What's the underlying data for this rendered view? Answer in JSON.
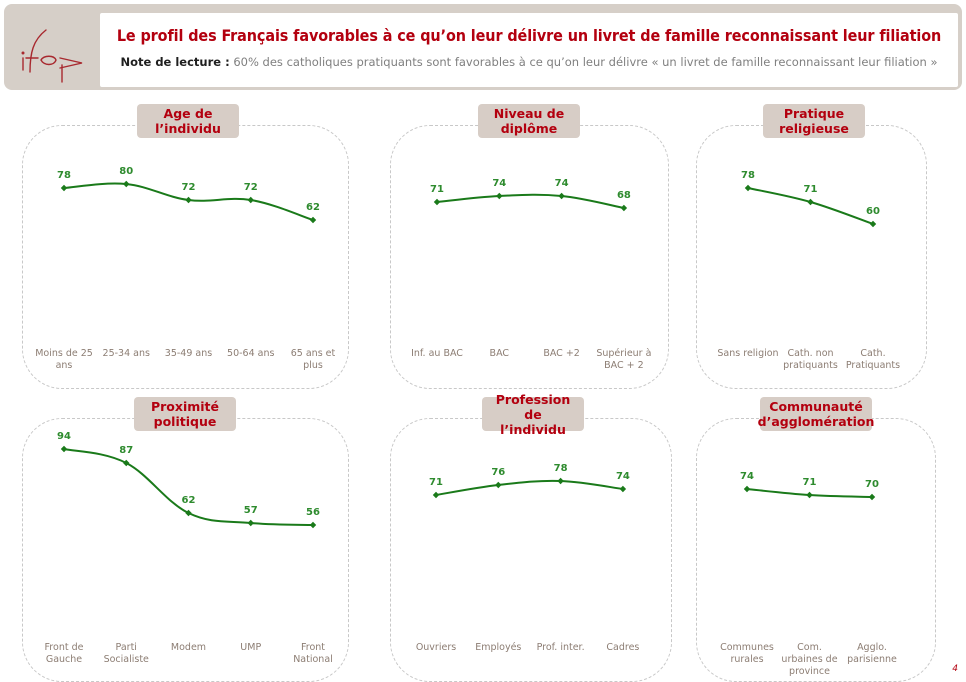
{
  "header": {
    "logo_text": "ifop",
    "title": "Le profil des Français favorables à ce qu’on leur délivre un livret de famille reconnaissant leur filiation",
    "note_label": "Note de lecture :",
    "note_text": "60% des catholiques pratiquants sont favorables à ce qu’on leur délivre « un livret de famille reconnaissant leur filiation »"
  },
  "colors": {
    "title_red": "#b3000f",
    "line_green": "#1a7a1a",
    "label_green": "#2e8b2e",
    "panel_title_bg": "#d7cdc6",
    "category_text": "#8c7d73"
  },
  "page_number": "4",
  "chart_data": [
    {
      "type": "line",
      "title": "Age de l’individu",
      "title_lines": [
        "Age de",
        "l’individu"
      ],
      "categories": [
        "Moins de 25 ans",
        "25-34 ans",
        "35-49 ans",
        "50-64 ans",
        "65 ans et plus"
      ],
      "category_lines": [
        [
          "Moins de 25",
          "ans"
        ],
        [
          "25-34 ans"
        ],
        [
          "35-49 ans"
        ],
        [
          "50-64 ans"
        ],
        [
          "65 ans et",
          "plus"
        ]
      ],
      "values": [
        78,
        80,
        72,
        72,
        62
      ],
      "unit": "%"
    },
    {
      "type": "line",
      "title": "Niveau de diplôme",
      "title_lines": [
        "Niveau de",
        "diplôme"
      ],
      "categories": [
        "Inf. au BAC",
        "BAC",
        "BAC +2",
        "Supérieur à BAC + 2"
      ],
      "category_lines": [
        [
          "Inf. au BAC"
        ],
        [
          "BAC"
        ],
        [
          "BAC +2"
        ],
        [
          "Supérieur à",
          "BAC + 2"
        ]
      ],
      "values": [
        71,
        74,
        74,
        68
      ],
      "unit": "%"
    },
    {
      "type": "line",
      "title": "Pratique religieuse",
      "title_lines": [
        "Pratique",
        "religieuse"
      ],
      "categories": [
        "Sans religion",
        "Cath. non pratiquants",
        "Cath. Pratiquants"
      ],
      "category_lines": [
        [
          "Sans religion"
        ],
        [
          "Cath. non",
          "pratiquants"
        ],
        [
          "Cath.",
          "Pratiquants"
        ]
      ],
      "values": [
        78,
        71,
        60
      ],
      "unit": "%"
    },
    {
      "type": "line",
      "title": "Proximité politique",
      "title_lines": [
        "Proximité",
        "politique"
      ],
      "categories": [
        "Front de Gauche",
        "Parti Socialiste",
        "Modem",
        "UMP",
        "Front National"
      ],
      "category_lines": [
        [
          "Front de",
          "Gauche"
        ],
        [
          "Parti",
          "Socialiste"
        ],
        [
          "Modem"
        ],
        [
          "UMP"
        ],
        [
          "Front",
          "National"
        ]
      ],
      "values": [
        94,
        87,
        62,
        57,
        56
      ],
      "unit": "%"
    },
    {
      "type": "line",
      "title": "Profession de l’individu",
      "title_lines": [
        "Profession de",
        "l’individu"
      ],
      "categories": [
        "Ouvriers",
        "Employés",
        "Prof. inter.",
        "Cadres"
      ],
      "category_lines": [
        [
          "Ouvriers"
        ],
        [
          "Employés"
        ],
        [
          "Prof. inter."
        ],
        [
          "Cadres"
        ]
      ],
      "values": [
        71,
        76,
        78,
        74
      ],
      "unit": "%"
    },
    {
      "type": "line",
      "title": "Communauté d’agglomération",
      "title_lines": [
        "Communauté",
        "d’agglomération"
      ],
      "categories": [
        "Communes rurales",
        "Com. urbaines de province",
        "Agglo. parisienne"
      ],
      "category_lines": [
        [
          "Communes",
          "rurales"
        ],
        [
          "Com.",
          "urbaines de",
          "province"
        ],
        [
          "Agglo.",
          "parisienne"
        ]
      ],
      "values": [
        74,
        71,
        70
      ],
      "unit": "%"
    }
  ]
}
